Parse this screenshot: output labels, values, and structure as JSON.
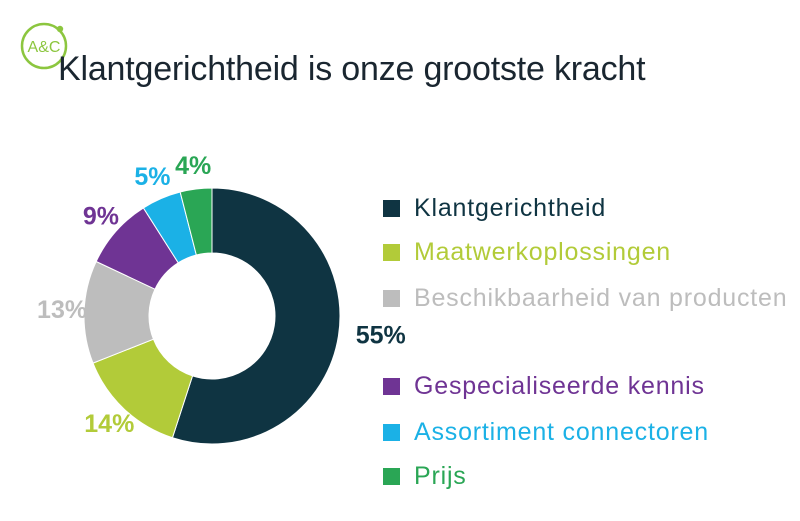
{
  "logo_text": "A&C",
  "colors": {
    "logo": "#8cc63f",
    "title": "#1a2630",
    "background": "#ffffff"
  },
  "title": "Klantgerichtheid is onze grootste kracht",
  "chart_data": {
    "type": "pie",
    "donut": true,
    "title": "Klantgerichtheid is onze grootste kracht",
    "legend_position": "right",
    "series": [
      {
        "name": "Klantgerichtheid",
        "value": 55,
        "label": "55%",
        "color": "#0f3442"
      },
      {
        "name": "Maatwerkoplossingen",
        "value": 14,
        "label": "14%",
        "color": "#b2cb39"
      },
      {
        "name": "Beschikbaarheid van producten",
        "value": 13,
        "label": "13%",
        "color": "#bdbdbd"
      },
      {
        "name": "Gespecialiseerde kennis",
        "value": 9,
        "label": "9%",
        "color": "#6f3494"
      },
      {
        "name": "Assortiment connectoren",
        "value": 5,
        "label": "5%",
        "color": "#1bb1e6"
      },
      {
        "name": "Prijs",
        "value": 4,
        "label": "4%",
        "color": "#2aa655"
      }
    ]
  }
}
